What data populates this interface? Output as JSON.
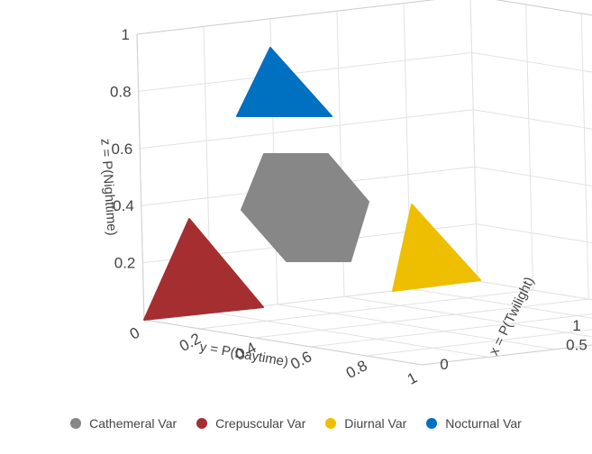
{
  "chart_data": {
    "type": "scatter3d",
    "axes": {
      "x": {
        "title": "x = P(Twilight)",
        "ticks": [
          "0",
          "0.5",
          "1"
        ]
      },
      "y": {
        "title": "y = P(Daytime)",
        "ticks": [
          "0",
          "0.2",
          "0.4",
          "0.6",
          "0.8",
          "1"
        ]
      },
      "z": {
        "title": "z = P(Nighttime)",
        "ticks": [
          "0.2",
          "0.4",
          "0.6",
          "0.8",
          "1"
        ]
      }
    },
    "series": [
      {
        "name": "Cathemeral Var",
        "color": "#878787",
        "shape": "hexagon"
      },
      {
        "name": "Crepuscular Var",
        "color": "#a52f30",
        "shape": "triangle"
      },
      {
        "name": "Diurnal Var",
        "color": "#edbf00",
        "shape": "triangle"
      },
      {
        "name": "Nocturnal Var",
        "color": "#0070c0",
        "shape": "triangle"
      }
    ],
    "legend": {
      "position": "bottom",
      "orientation": "horizontal"
    },
    "grid": true
  }
}
